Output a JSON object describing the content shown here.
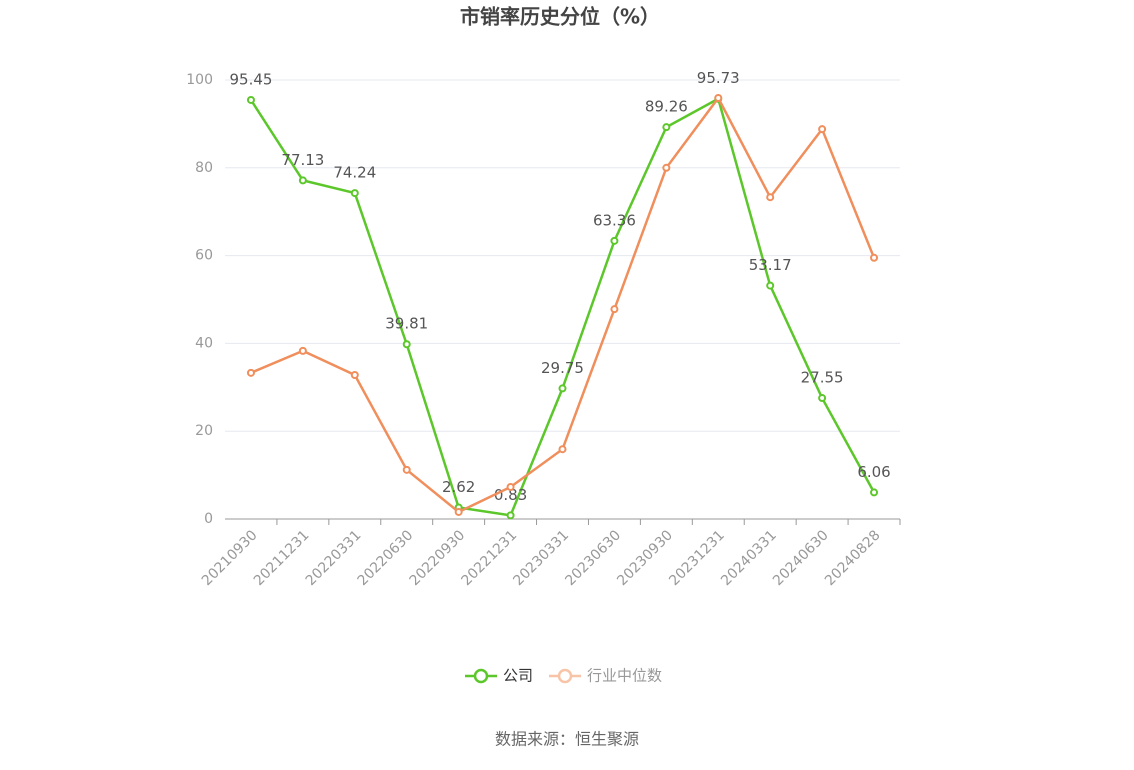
{
  "chart_data": {
    "type": "line",
    "title": "市销率历史分位（%）",
    "categories": [
      "20210930",
      "20211231",
      "20220331",
      "20220630",
      "20220930",
      "20221231",
      "20230331",
      "20230630",
      "20230930",
      "20231231",
      "20240331",
      "20240630",
      "20240828"
    ],
    "series": [
      {
        "name": "公司",
        "color": "#5cc72a",
        "values": [
          95.45,
          77.13,
          74.24,
          39.81,
          2.62,
          0.83,
          29.75,
          63.36,
          89.26,
          95.73,
          53.17,
          27.55,
          6.06
        ]
      },
      {
        "name": "行业中位数",
        "color": "#f08e5c",
        "values": [
          33.3,
          38.3,
          32.8,
          11.2,
          1.6,
          7.3,
          15.9,
          47.8,
          80.0,
          95.9,
          73.3,
          88.8,
          59.5
        ]
      }
    ],
    "ylim": [
      0,
      100
    ],
    "yticks": [
      0,
      20,
      40,
      60,
      80,
      100
    ],
    "grid": true,
    "legend": "bottom"
  },
  "source": "数据来源：恒生聚源"
}
